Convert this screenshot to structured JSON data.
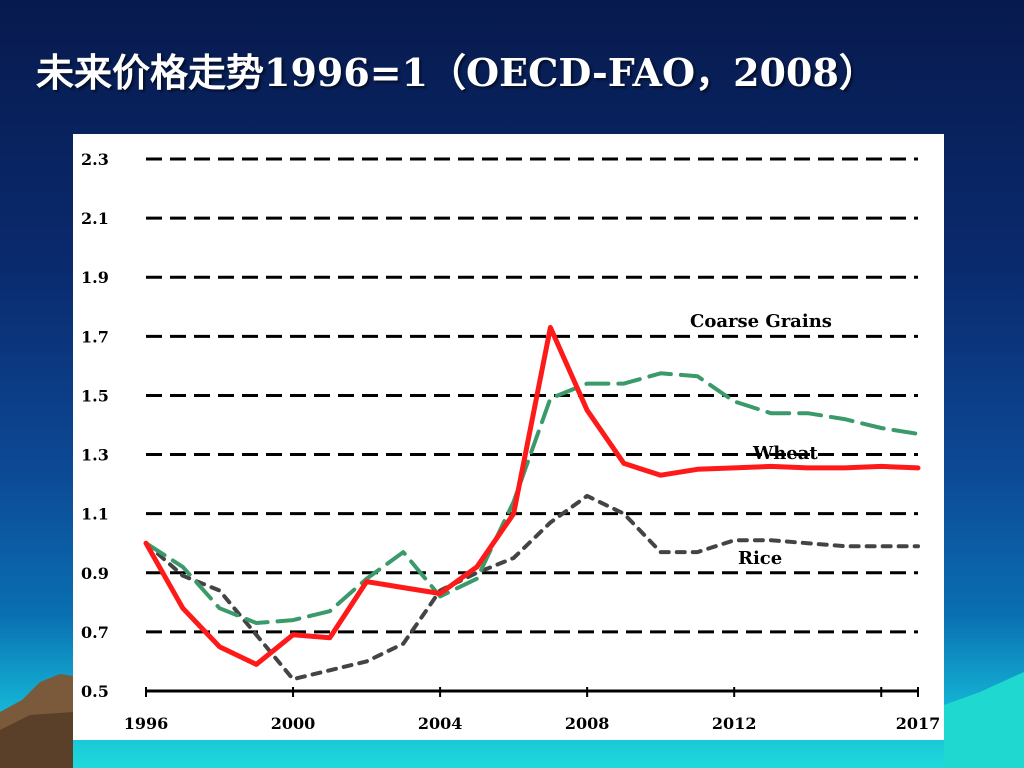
{
  "slide": {
    "title": "未来价格走势1996=1（OECD-FAO，2008）"
  },
  "colors": {
    "background_top": "#071a4e",
    "background_bottom": "#1fd9dc",
    "coarse_grains": "#ff1a1a",
    "wheat": "#3a9a6a",
    "rice": "#444444",
    "grid": "#000000"
  },
  "chart_data": {
    "type": "line",
    "title": "",
    "xlabel": "",
    "ylabel": "",
    "xlim": [
      1996,
      2017
    ],
    "ylim": [
      0.5,
      2.3
    ],
    "grid": true,
    "y_ticks": [
      "2.3",
      "2.1",
      "1.9",
      "1.7",
      "1.5",
      "1.3",
      "1.1",
      "0.9",
      "0.7",
      "0.5"
    ],
    "x_ticks": [
      "1996",
      "2000",
      "2004",
      "2008",
      "2012",
      "2017"
    ],
    "x": [
      1996,
      1997,
      1998,
      1999,
      2000,
      2001,
      2002,
      2003,
      2004,
      2005,
      2006,
      2007,
      2008,
      2009,
      2010,
      2011,
      2012,
      2013,
      2014,
      2015,
      2016,
      2017
    ],
    "series": [
      {
        "name": "Coarse Grains",
        "style": "solid",
        "color": "#ff1a1a",
        "values": [
          1.0,
          0.78,
          0.65,
          0.59,
          0.69,
          0.68,
          0.87,
          0.85,
          0.83,
          0.92,
          1.1,
          1.73,
          1.45,
          1.27,
          1.23,
          1.25,
          1.255,
          1.26,
          1.255,
          1.255,
          1.26,
          1.255
        ]
      },
      {
        "name": "Wheat",
        "style": "dashed",
        "color": "#3a9a6a",
        "values": [
          1.0,
          0.92,
          0.78,
          0.73,
          0.74,
          0.77,
          0.88,
          0.97,
          0.82,
          0.88,
          1.14,
          1.49,
          1.54,
          1.54,
          1.575,
          1.565,
          1.48,
          1.44,
          1.44,
          1.42,
          1.39,
          1.37
        ]
      },
      {
        "name": "Rice",
        "style": "dotted",
        "color": "#444444",
        "values": [
          1.0,
          0.89,
          0.84,
          0.69,
          0.54,
          0.57,
          0.6,
          0.66,
          0.84,
          0.9,
          0.95,
          1.07,
          1.16,
          1.1,
          0.97,
          0.97,
          1.01,
          1.01,
          1.0,
          0.99,
          0.99,
          0.99
        ]
      }
    ]
  }
}
